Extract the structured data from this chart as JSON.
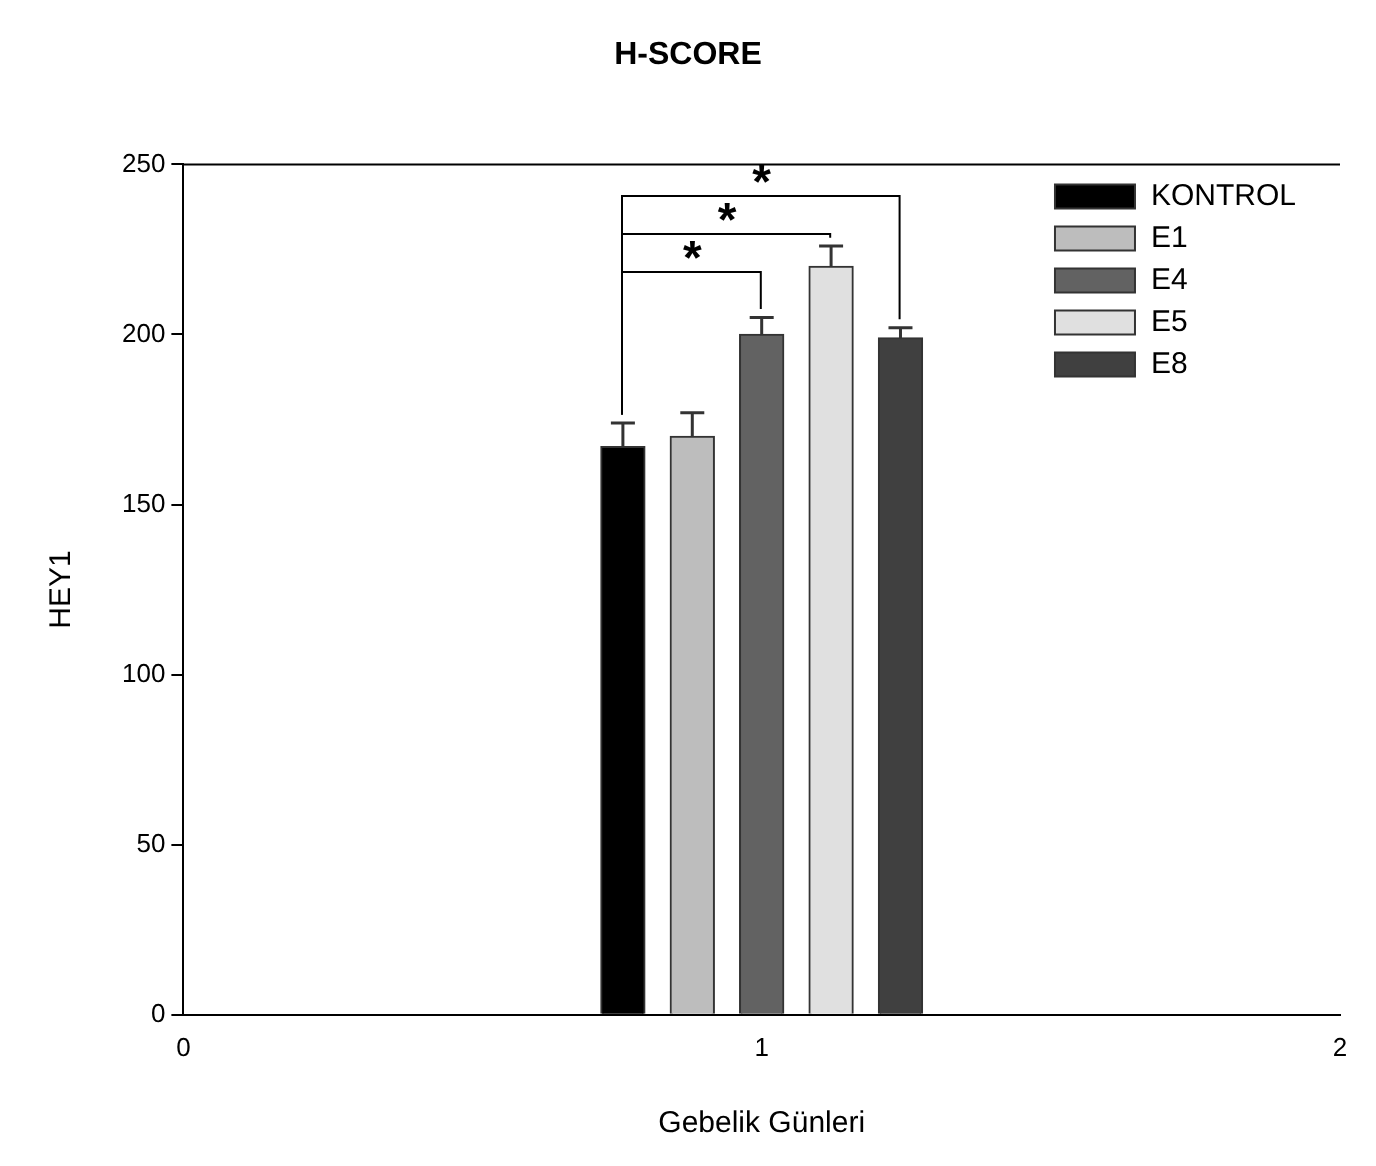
{
  "chart_data": {
    "type": "bar",
    "title": "H-SCORE",
    "xlabel": "Gebelik Günleri",
    "ylabel": "HEY1",
    "xlim": [
      0,
      2
    ],
    "xticks": [
      0,
      1,
      2
    ],
    "ylim": [
      0,
      250
    ],
    "yticks": [
      0,
      50,
      100,
      150,
      200,
      250
    ],
    "legend": "top right",
    "grid": false,
    "series": [
      {
        "name": "KONTROL",
        "color": "#000000",
        "x": [
          0.76
        ],
        "values": [
          167
        ],
        "errors": [
          [
            167,
            174
          ]
        ]
      },
      {
        "name": "E1",
        "color": "#bdbdbd",
        "x": [
          0.88
        ],
        "values": [
          170
        ],
        "errors": [
          [
            170,
            177
          ]
        ]
      },
      {
        "name": "E4",
        "color": "#626262",
        "x": [
          1.0
        ],
        "values": [
          200
        ],
        "errors": [
          [
            200,
            205
          ]
        ]
      },
      {
        "name": "E5",
        "color": "#e0e0e0",
        "x": [
          1.12
        ],
        "values": [
          220
        ],
        "errors": [
          [
            220,
            226
          ]
        ]
      },
      {
        "name": "E8",
        "color": "#404040",
        "x": [
          1.24
        ],
        "values": [
          199
        ],
        "errors": [
          [
            199,
            202
          ]
        ]
      }
    ],
    "annotations": [
      "*",
      "*",
      "*"
    ]
  }
}
